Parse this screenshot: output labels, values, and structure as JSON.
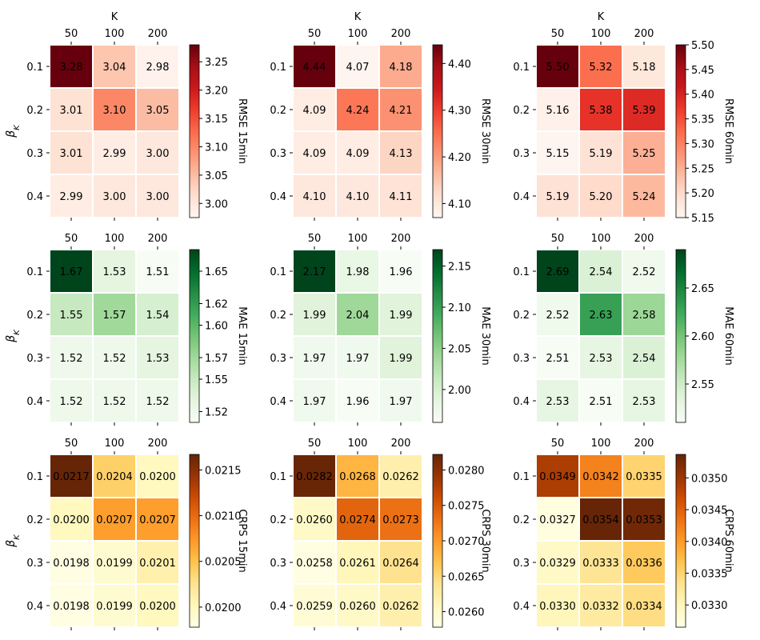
{
  "figure": {
    "x_axis_label": "K",
    "y_axis_label": "β_K",
    "k_values": [
      "50",
      "100",
      "200"
    ],
    "beta_values": [
      "0.1",
      "0.2",
      "0.3",
      "0.4"
    ]
  },
  "chart_data": [
    {
      "type": "heatmap",
      "metric": "RMSE",
      "horizon": "15min",
      "colorbar_label": "RMSE 15min",
      "colormap": "Reds",
      "categories_x": [
        "50",
        "100",
        "200"
      ],
      "categories_y": [
        "0.1",
        "0.2",
        "0.3",
        "0.4"
      ],
      "values": [
        [
          3.28,
          3.04,
          2.98
        ],
        [
          3.01,
          3.1,
          3.05
        ],
        [
          3.01,
          2.99,
          3.0
        ],
        [
          2.99,
          3.0,
          3.0
        ]
      ],
      "labels": [
        [
          "3.28",
          "3.04",
          "2.98"
        ],
        [
          "3.01",
          "3.10",
          "3.05"
        ],
        [
          "3.01",
          "2.99",
          "3.00"
        ],
        [
          "2.99",
          "3.00",
          "3.00"
        ]
      ],
      "vmin": 2.975,
      "vmax": 3.28,
      "colorbar_ticks": [
        3.0,
        3.05,
        3.1,
        3.15,
        3.2,
        3.25
      ],
      "colorbar_tick_labels": [
        "3.00",
        "3.05",
        "3.10",
        "3.15",
        "3.20",
        "3.25"
      ]
    },
    {
      "type": "heatmap",
      "metric": "RMSE",
      "horizon": "30min",
      "colorbar_label": "RMSE 30min",
      "colormap": "Reds",
      "categories_x": [
        "50",
        "100",
        "200"
      ],
      "categories_y": [
        "0.1",
        "0.2",
        "0.3",
        "0.4"
      ],
      "values": [
        [
          4.44,
          4.07,
          4.18
        ],
        [
          4.09,
          4.24,
          4.21
        ],
        [
          4.09,
          4.09,
          4.13
        ],
        [
          4.1,
          4.1,
          4.11
        ]
      ],
      "labels": [
        [
          "4.44",
          "4.07",
          "4.18"
        ],
        [
          "4.09",
          "4.24",
          "4.21"
        ],
        [
          "4.09",
          "4.09",
          "4.13"
        ],
        [
          "4.10",
          "4.10",
          "4.11"
        ]
      ],
      "vmin": 4.07,
      "vmax": 4.44,
      "colorbar_ticks": [
        4.1,
        4.2,
        4.3,
        4.4
      ],
      "colorbar_tick_labels": [
        "4.10",
        "4.20",
        "4.30",
        "4.40"
      ]
    },
    {
      "type": "heatmap",
      "metric": "RMSE",
      "horizon": "60min",
      "colorbar_label": "RMSE 60min",
      "colormap": "Reds",
      "categories_x": [
        "50",
        "100",
        "200"
      ],
      "categories_y": [
        "0.1",
        "0.2",
        "0.3",
        "0.4"
      ],
      "values": [
        [
          5.5,
          5.32,
          5.18
        ],
        [
          5.16,
          5.38,
          5.39
        ],
        [
          5.15,
          5.19,
          5.25
        ],
        [
          5.19,
          5.2,
          5.24
        ]
      ],
      "labels": [
        [
          "5.50",
          "5.32",
          "5.18"
        ],
        [
          "5.16",
          "5.38",
          "5.39"
        ],
        [
          "5.15",
          "5.19",
          "5.25"
        ],
        [
          "5.19",
          "5.20",
          "5.24"
        ]
      ],
      "vmin": 5.15,
      "vmax": 5.5,
      "colorbar_ticks": [
        5.15,
        5.2,
        5.25,
        5.3,
        5.35,
        5.4,
        5.45,
        5.5
      ],
      "colorbar_tick_labels": [
        "5.15",
        "5.20",
        "5.25",
        "5.30",
        "5.35",
        "5.40",
        "5.45",
        "5.50"
      ]
    },
    {
      "type": "heatmap",
      "metric": "MAE",
      "horizon": "15min",
      "colorbar_label": "MAE 15min",
      "colormap": "Greens",
      "categories_x": [
        "50",
        "100",
        "200"
      ],
      "categories_y": [
        "0.1",
        "0.2",
        "0.3",
        "0.4"
      ],
      "values": [
        [
          1.67,
          1.53,
          1.51
        ],
        [
          1.55,
          1.57,
          1.54
        ],
        [
          1.52,
          1.52,
          1.53
        ],
        [
          1.52,
          1.52,
          1.52
        ]
      ],
      "labels": [
        [
          "1.67",
          "1.53",
          "1.51"
        ],
        [
          "1.55",
          "1.57",
          "1.54"
        ],
        [
          "1.52",
          "1.52",
          "1.53"
        ],
        [
          "1.52",
          "1.52",
          "1.52"
        ]
      ],
      "vmin": 1.51,
      "vmax": 1.67,
      "colorbar_ticks": [
        1.52,
        1.55,
        1.57,
        1.6,
        1.62,
        1.65
      ],
      "colorbar_tick_labels": [
        "1.52",
        "1.55",
        "1.57",
        "1.60",
        "1.62",
        "1.65"
      ]
    },
    {
      "type": "heatmap",
      "metric": "MAE",
      "horizon": "30min",
      "colorbar_label": "MAE 30min",
      "colormap": "Greens",
      "categories_x": [
        "50",
        "100",
        "200"
      ],
      "categories_y": [
        "0.1",
        "0.2",
        "0.3",
        "0.4"
      ],
      "values": [
        [
          2.17,
          1.98,
          1.96
        ],
        [
          1.99,
          2.04,
          1.99
        ],
        [
          1.97,
          1.97,
          1.99
        ],
        [
          1.97,
          1.96,
          1.97
        ]
      ],
      "labels": [
        [
          "2.17",
          "1.98",
          "1.96"
        ],
        [
          "1.99",
          "2.04",
          "1.99"
        ],
        [
          "1.97",
          "1.97",
          "1.99"
        ],
        [
          "1.97",
          "1.96",
          "1.97"
        ]
      ],
      "vmin": 1.96,
      "vmax": 2.17,
      "colorbar_ticks": [
        2.0,
        2.05,
        2.1,
        2.15
      ],
      "colorbar_tick_labels": [
        "2.00",
        "2.05",
        "2.10",
        "2.15"
      ]
    },
    {
      "type": "heatmap",
      "metric": "MAE",
      "horizon": "60min",
      "colorbar_label": "MAE 60min",
      "colormap": "Greens",
      "categories_x": [
        "50",
        "100",
        "200"
      ],
      "categories_y": [
        "0.1",
        "0.2",
        "0.3",
        "0.4"
      ],
      "values": [
        [
          2.69,
          2.54,
          2.52
        ],
        [
          2.52,
          2.63,
          2.58
        ],
        [
          2.51,
          2.53,
          2.54
        ],
        [
          2.53,
          2.51,
          2.53
        ]
      ],
      "labels": [
        [
          "2.69",
          "2.54",
          "2.52"
        ],
        [
          "2.52",
          "2.63",
          "2.58"
        ],
        [
          "2.51",
          "2.53",
          "2.54"
        ],
        [
          "2.53",
          "2.51",
          "2.53"
        ]
      ],
      "vmin": 2.51,
      "vmax": 2.69,
      "colorbar_ticks": [
        2.55,
        2.6,
        2.65
      ],
      "colorbar_tick_labels": [
        "2.55",
        "2.60",
        "2.65"
      ]
    },
    {
      "type": "heatmap",
      "metric": "CRPS",
      "horizon": "15min",
      "colorbar_label": "CRPS 15min",
      "colormap": "YlOrBr",
      "categories_x": [
        "50",
        "100",
        "200"
      ],
      "categories_y": [
        "0.1",
        "0.2",
        "0.3",
        "0.4"
      ],
      "values": [
        [
          0.0217,
          0.0204,
          0.02
        ],
        [
          0.02,
          0.0207,
          0.0207
        ],
        [
          0.0198,
          0.0199,
          0.0201
        ],
        [
          0.0198,
          0.0199,
          0.02
        ]
      ],
      "labels": [
        [
          "0.0217",
          "0.0204",
          "0.0200"
        ],
        [
          "0.0200",
          "0.0207",
          "0.0207"
        ],
        [
          "0.0198",
          "0.0199",
          "0.0201"
        ],
        [
          "0.0198",
          "0.0199",
          "0.0200"
        ]
      ],
      "vmin": 0.01978,
      "vmax": 0.02167,
      "colorbar_ticks": [
        0.02,
        0.0205,
        0.021,
        0.0215
      ],
      "colorbar_tick_labels": [
        "0.0200",
        "0.0205",
        "0.0210",
        "0.0215"
      ]
    },
    {
      "type": "heatmap",
      "metric": "CRPS",
      "horizon": "30min",
      "colorbar_label": "CRPS 30min",
      "colormap": "YlOrBr",
      "categories_x": [
        "50",
        "100",
        "200"
      ],
      "categories_y": [
        "0.1",
        "0.2",
        "0.3",
        "0.4"
      ],
      "values": [
        [
          0.0282,
          0.0268,
          0.0262
        ],
        [
          0.026,
          0.0274,
          0.0273
        ],
        [
          0.0258,
          0.0261,
          0.0264
        ],
        [
          0.0259,
          0.026,
          0.0262
        ]
      ],
      "labels": [
        [
          "0.0282",
          "0.0268",
          "0.0262"
        ],
        [
          "0.0260",
          "0.0274",
          "0.0273"
        ],
        [
          "0.0258",
          "0.0261",
          "0.0264"
        ],
        [
          "0.0259",
          "0.0260",
          "0.0262"
        ]
      ],
      "vmin": 0.02578,
      "vmax": 0.02822,
      "colorbar_ticks": [
        0.026,
        0.0265,
        0.027,
        0.0275,
        0.028
      ],
      "colorbar_tick_labels": [
        "0.0260",
        "0.0265",
        "0.0270",
        "0.0275",
        "0.0280"
      ]
    },
    {
      "type": "heatmap",
      "metric": "CRPS",
      "horizon": "60min",
      "colorbar_label": "CRPS 60min",
      "colormap": "YlOrBr",
      "categories_x": [
        "50",
        "100",
        "200"
      ],
      "categories_y": [
        "0.1",
        "0.2",
        "0.3",
        "0.4"
      ],
      "values": [
        [
          0.0349,
          0.0342,
          0.0335
        ],
        [
          0.0327,
          0.0354,
          0.0353
        ],
        [
          0.0329,
          0.0333,
          0.0336
        ],
        [
          0.033,
          0.0332,
          0.0334
        ]
      ],
      "labels": [
        [
          "0.0349",
          "0.0342",
          "0.0335"
        ],
        [
          "0.0327",
          "0.0354",
          "0.0353"
        ],
        [
          "0.0329",
          "0.0333",
          "0.0336"
        ],
        [
          "0.0330",
          "0.0332",
          "0.0334"
        ]
      ],
      "vmin": 0.03265,
      "vmax": 0.03537,
      "colorbar_ticks": [
        0.033,
        0.0335,
        0.034,
        0.0345,
        0.035
      ],
      "colorbar_tick_labels": [
        "0.0330",
        "0.0335",
        "0.0340",
        "0.0345",
        "0.0350"
      ]
    }
  ]
}
